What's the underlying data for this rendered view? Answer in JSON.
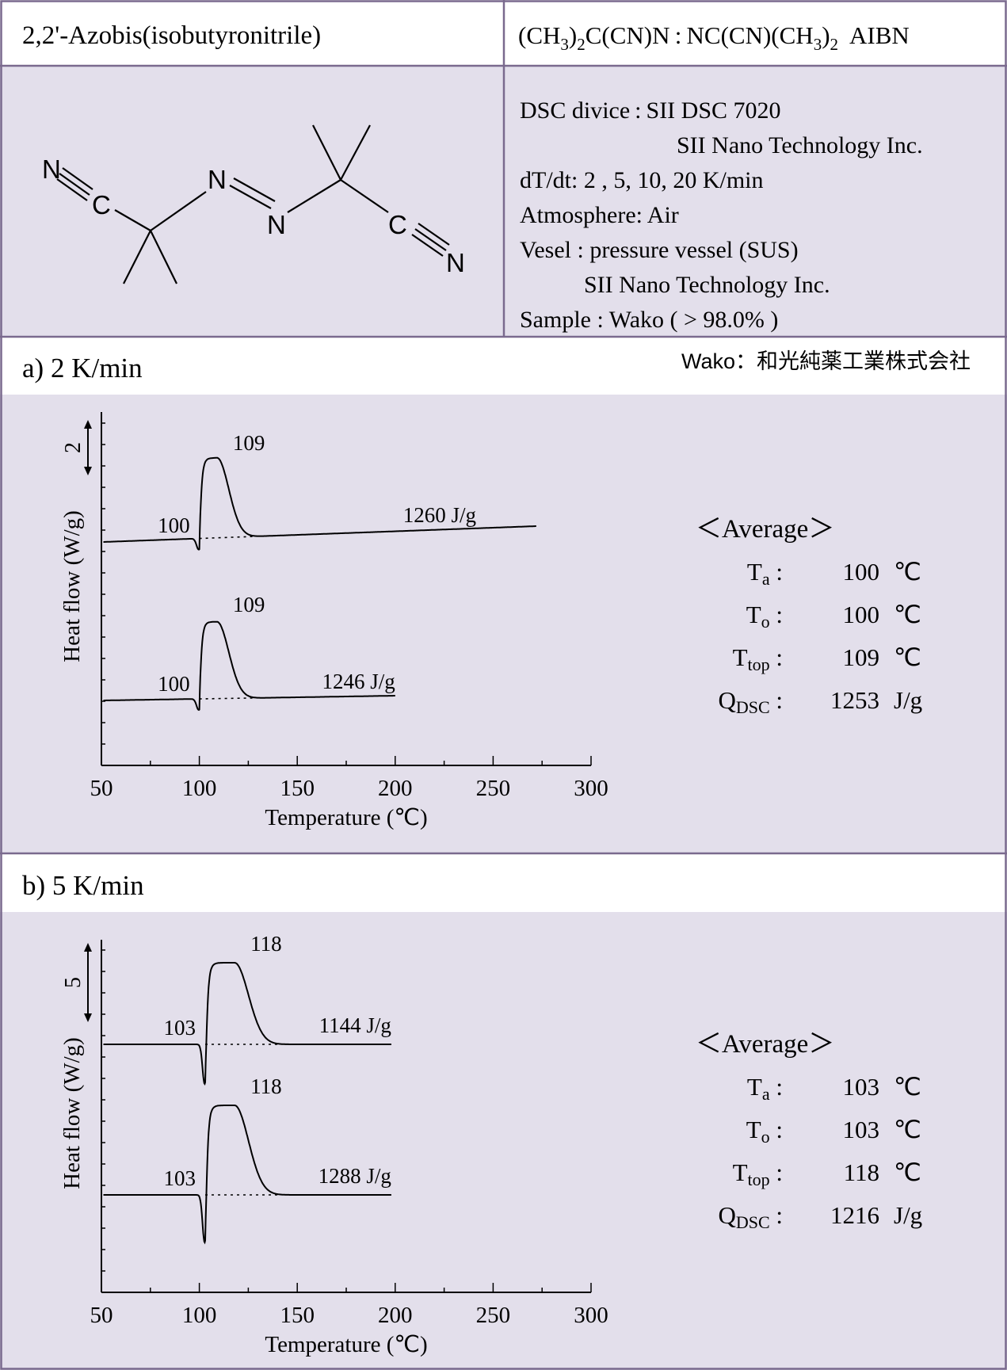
{
  "header": {
    "name": "2,2'-Azobis(isobutyronitrile)",
    "formula_parts": [
      "(CH",
      "3",
      ")",
      "2",
      "C(CN)N : NC(CN)(CH",
      "3",
      ")",
      "2"
    ],
    "abbrev": "AIBN"
  },
  "structure_atoms": {
    "n_left": "N",
    "c_left": "C",
    "n_azo_1": "N",
    "n_azo_2": "N",
    "c_right": "C",
    "n_right": "N"
  },
  "conditions": {
    "line1": "DSC divice : SII DSC 7020",
    "line2": "SII Nano Technology Inc.",
    "line3": "dT/dt: 2 , 5, 10, 20 K/min",
    "line4": "Atmosphere: Air",
    "line5": "Vesel : pressure vessel (SUS)",
    "line6": "SII Nano Technology Inc.",
    "line7": "Sample : Wako ( > 98.0% )"
  },
  "supplier_note": "Wako：和光純薬工業株式会社",
  "sections": [
    {
      "title": "a) 2 K/min",
      "average": {
        "heading": "＜Average＞",
        "rows": [
          {
            "sym": "T",
            "sub": "a",
            "val": "100",
            "unit": "℃"
          },
          {
            "sym": "T",
            "sub": "o",
            "val": "100",
            "unit": "℃"
          },
          {
            "sym": "T",
            "sub": "top",
            "val": "109",
            "unit": "℃"
          },
          {
            "sym": "Q",
            "sub": "DSC",
            "val": "1253",
            "unit": "J/g"
          }
        ]
      }
    },
    {
      "title": "b) 5 K/min",
      "average": {
        "heading": "＜Average＞",
        "rows": [
          {
            "sym": "T",
            "sub": "a",
            "val": "103",
            "unit": "℃"
          },
          {
            "sym": "T",
            "sub": "o",
            "val": "103",
            "unit": "℃"
          },
          {
            "sym": "T",
            "sub": "top",
            "val": "118",
            "unit": "℃"
          },
          {
            "sym": "Q",
            "sub": "DSC",
            "val": "1216",
            "unit": "J/g"
          }
        ]
      }
    }
  ],
  "chart_data": [
    {
      "type": "line",
      "xlabel": "Temperature (℃)",
      "ylabel": "Heat flow (W/g)",
      "xlim": [
        50,
        300
      ],
      "xticks": [
        50,
        100,
        150,
        200,
        250,
        300
      ],
      "scale_bar": "2",
      "series": [
        {
          "onset": 100,
          "peak": 109,
          "heat": "1260 J/g",
          "end_x": 272,
          "onset_label": "100",
          "peak_label": "109"
        },
        {
          "onset": 100,
          "peak": 109,
          "heat": "1246 J/g",
          "end_x": 200,
          "onset_label": "100",
          "peak_label": "109"
        }
      ]
    },
    {
      "type": "line",
      "xlabel": "Temperature (℃)",
      "ylabel": "Heat flow (W/g)",
      "xlim": [
        50,
        300
      ],
      "xticks": [
        50,
        100,
        150,
        200,
        250,
        300
      ],
      "scale_bar": "5",
      "series": [
        {
          "onset": 103,
          "peak": 118,
          "heat": "1144 J/g",
          "end_x": 198,
          "onset_label": "103",
          "peak_label": "118"
        },
        {
          "onset": 103,
          "peak": 118,
          "heat": "1288 J/g",
          "end_x": 198,
          "onset_label": "103",
          "peak_label": "118"
        }
      ]
    }
  ]
}
